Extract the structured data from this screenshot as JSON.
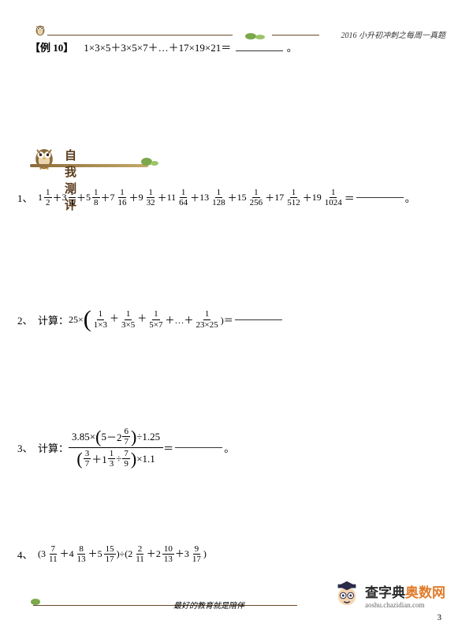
{
  "header": {
    "right_text": "2016 小升初冲刺之每周一真题"
  },
  "example": {
    "label": "【例 10】",
    "expr": "1×3×5＋3×5×7＋…＋17×19×21＝",
    "suffix": "。"
  },
  "section": {
    "title": "自我测评"
  },
  "p1": {
    "num": "1、",
    "terms": [
      {
        "w": "1",
        "n": "1",
        "d": "2"
      },
      {
        "w": "3",
        "n": "1",
        "d": "4"
      },
      {
        "w": "5",
        "n": "1",
        "d": "8"
      },
      {
        "w": "7",
        "n": "1",
        "d": "16"
      },
      {
        "w": "9",
        "n": "1",
        "d": "32"
      },
      {
        "w": "11",
        "n": "1",
        "d": "64"
      },
      {
        "w": "13",
        "n": "1",
        "d": "128"
      },
      {
        "w": "15",
        "n": "1",
        "d": "256"
      },
      {
        "w": "17",
        "n": "1",
        "d": "512"
      },
      {
        "w": "19",
        "n": "1",
        "d": "1024"
      }
    ],
    "blank_suffix": "。"
  },
  "p2": {
    "num": "2、",
    "label": "计算：",
    "lead": "25×",
    "terms": [
      {
        "n": "1",
        "d": "1×3"
      },
      {
        "n": "1",
        "d": "3×5"
      },
      {
        "n": "1",
        "d": "5×7"
      }
    ],
    "dots": "＋…＋",
    "last": {
      "n": "1",
      "d": "23×25"
    },
    "eq": ")＝"
  },
  "p3": {
    "num": "3、",
    "label": "计算：",
    "top_a": "3.85×",
    "top_b_w": "5",
    "top_b_op": "－2",
    "top_b_n": "6",
    "top_b_d": "7",
    "top_c": "÷1.25",
    "bot_a_n": "3",
    "bot_a_d": "7",
    "bot_op": "＋1",
    "bot_b_n": "1",
    "bot_b_d": "3",
    "bot_div": "÷",
    "bot_c_n": "7",
    "bot_c_d": "9",
    "bot_tail": "×1.1",
    "eq": "＝",
    "suffix": "。"
  },
  "p4": {
    "num": "4、",
    "g1": [
      {
        "w": "3",
        "n": "7",
        "d": "11"
      },
      {
        "w": "4",
        "n": "8",
        "d": "13"
      },
      {
        "w": "5",
        "n": "15",
        "d": "17"
      }
    ],
    "op": ")÷(",
    "g2": [
      {
        "w": "2",
        "n": "2",
        "d": "11"
      },
      {
        "w": "2",
        "n": "10",
        "d": "13"
      },
      {
        "w": "3",
        "n": "9",
        "d": "17"
      }
    ]
  },
  "footer": {
    "motto": "最好的教育就是陪伴",
    "page": "3",
    "logo1a": "查字典",
    "logo1b": "奥数网",
    "logo2": "aoshu.chazidian.com"
  },
  "colors": {
    "owl_body": "#8b6b3a",
    "owl_belly": "#e8d5b0",
    "owl_eye": "#ffffff",
    "owl_pupil": "#3a2a1a",
    "owl_beak": "#d4a02a",
    "leaf": "#7ba84a",
    "branch": "#8b6b3a",
    "grad_hat": "#2a2a4a",
    "face": "#f5d5b0"
  }
}
